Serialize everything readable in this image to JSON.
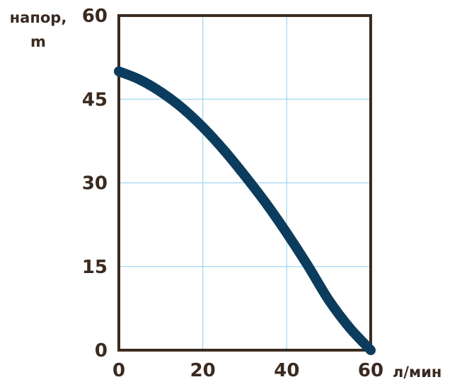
{
  "chart_data": {
    "type": "line",
    "title": "",
    "ylabel_line1": "напор,",
    "ylabel_line2": "m",
    "xlabel": "л/мин",
    "xlim": [
      0,
      60
    ],
    "ylim": [
      0,
      60
    ],
    "x_ticks": [
      "0",
      "20",
      "40",
      "60"
    ],
    "y_ticks": [
      "0",
      "15",
      "30",
      "45",
      "60"
    ],
    "grid": true,
    "legend": "none",
    "colors": {
      "curve": "#0b3c5d",
      "grid": "#9fd8ef",
      "frame": "#3a2a20",
      "text": "#3a2a20"
    },
    "series": [
      {
        "x": [
          0,
          5,
          10,
          15,
          20,
          25,
          30,
          35,
          40,
          45,
          50,
          55,
          60
        ],
        "y": [
          50,
          48.5,
          46.3,
          43.5,
          40,
          35.9,
          31.3,
          26.4,
          21,
          15.2,
          9,
          4,
          0
        ]
      }
    ]
  }
}
